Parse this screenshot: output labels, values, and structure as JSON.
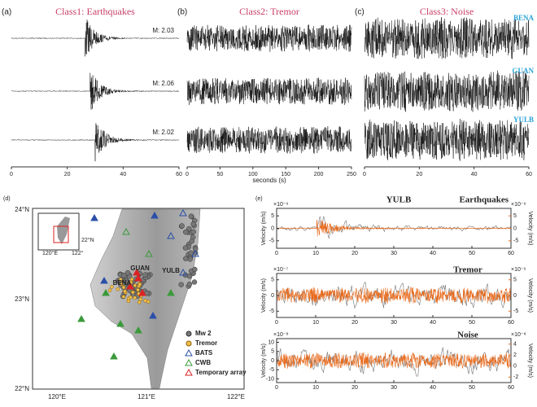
{
  "panels_top": [
    {
      "label": "(a)",
      "title": "Class1: Earthquakes",
      "traces": [
        "M: 2.03",
        "M: 2.06",
        "M: 2.02"
      ],
      "xlim": [
        0,
        60
      ],
      "xticks": [
        0,
        20,
        40,
        60
      ]
    },
    {
      "label": "(b)",
      "title": "Class2: Tremor",
      "xlabel": "seconds (s)",
      "xlim": [
        0,
        250
      ],
      "xticks": [
        0,
        50,
        100,
        150,
        200,
        250
      ]
    },
    {
      "label": "(c)",
      "title": "Class3: Noise",
      "stations": [
        "BENA",
        "GUAN",
        "YULB"
      ],
      "xlim": [
        0,
        60
      ],
      "xticks": [
        0,
        20,
        40,
        60
      ]
    }
  ],
  "map": {
    "label": "(d)",
    "lat_labels": [
      "24°N",
      "23°N",
      "22°N"
    ],
    "lon_labels": [
      "120°E",
      "121°E",
      "122°E"
    ],
    "inset_labels": [
      "22°N",
      "120°E",
      "122°"
    ],
    "stations": [
      "GUAN",
      "YULB",
      "BENA"
    ],
    "legend": [
      "Mw 2",
      "Tremor",
      "BATS",
      "CWB",
      "Temporary array"
    ]
  },
  "velocity": {
    "label": "(e)",
    "station": "YULB",
    "ylabel": "Velocity (m/s)",
    "xlim": [
      0,
      60
    ],
    "xticks": [
      0,
      10,
      20,
      30,
      40,
      50,
      60
    ],
    "panels": [
      {
        "title": "Earthquakes",
        "scale_left": "×10⁻⁶",
        "scale_right": "×10⁻⁶",
        "ylim_left": [
          -8,
          8
        ],
        "yticks_left": [
          -5,
          0,
          5
        ],
        "ylim_right": [
          -8,
          8
        ],
        "yticks_right": [
          -5,
          0,
          5
        ]
      },
      {
        "title": "Tremor",
        "scale_left": "×10⁻⁷",
        "scale_right": "×10⁻⁶",
        "ylim_left": [
          -7,
          7
        ],
        "yticks_left": [
          -5,
          0,
          5
        ],
        "ylim_right": [
          -7,
          7
        ],
        "yticks_right": [
          -5,
          0,
          5
        ]
      },
      {
        "title": "Noise",
        "scale_left": "×10⁻⁸",
        "scale_right": "×10⁻⁸",
        "ylim_left": [
          -12,
          12
        ],
        "yticks_left": [
          -10,
          -5,
          0,
          5,
          10
        ],
        "ylim_right": [
          -3,
          5
        ],
        "yticks_right": [
          -2,
          0,
          2,
          4
        ]
      }
    ]
  }
}
